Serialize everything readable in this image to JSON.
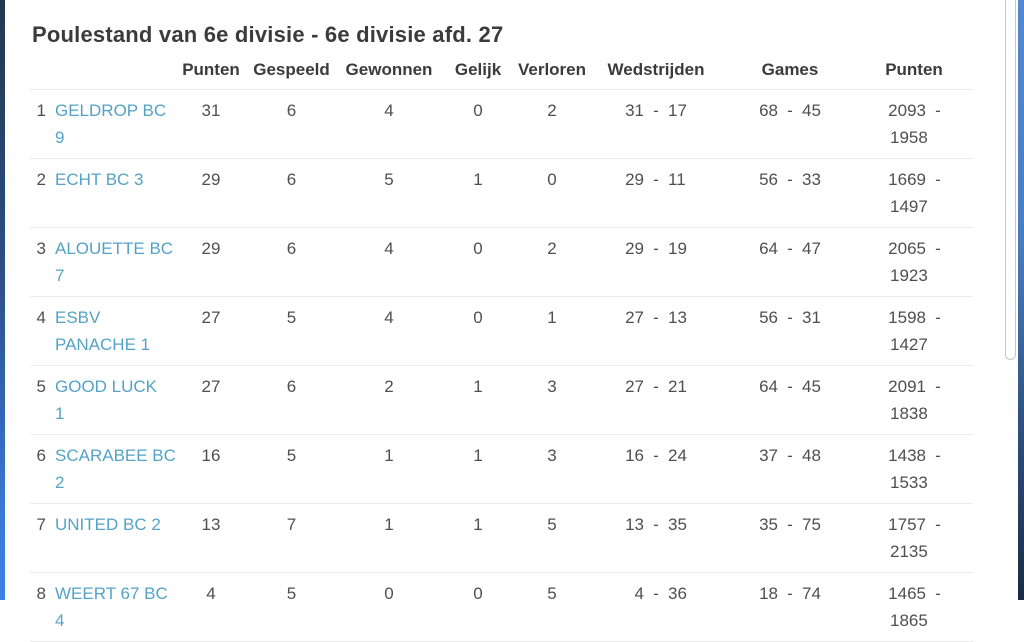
{
  "page": {
    "title": "Poulestand van 6e divisie - 6e divisie afd. 27"
  },
  "colors": {
    "link_accent": "#54a3c7",
    "title_text": "#3b3b3b",
    "body_text": "#4f4f4f",
    "row_separator": "#ececec",
    "edge_left_top": "#243750",
    "edge_left_bottom": "#3f80e4",
    "edge_right_top": "#5389d1",
    "edge_right_bottom": "#1a2c44"
  },
  "table": {
    "headers": [
      "Punten",
      "Gespeeld",
      "Gewonnen",
      "Gelijk",
      "Verloren",
      "Wedstrijden",
      "Games",
      "Punten"
    ],
    "rows": [
      {
        "rank": 1,
        "team": "GELDROP BC 9",
        "team_lines": [
          "GELDROP BC",
          "9"
        ],
        "punten": 31,
        "gespeeld": 6,
        "gewonnen": 4,
        "gelijk": 0,
        "verloren": 2,
        "wedstrijden": [
          31,
          17
        ],
        "games": [
          68,
          45
        ],
        "punten_voor_tegen": [
          2093,
          1958
        ]
      },
      {
        "rank": 2,
        "team": "ECHT BC 3",
        "team_lines": [
          "ECHT BC 3"
        ],
        "punten": 29,
        "gespeeld": 6,
        "gewonnen": 5,
        "gelijk": 1,
        "verloren": 0,
        "wedstrijden": [
          29,
          11
        ],
        "games": [
          56,
          33
        ],
        "punten_voor_tegen": [
          1669,
          1497
        ]
      },
      {
        "rank": 3,
        "team": "ALOUETTE BC 7",
        "team_lines": [
          "ALOUETTE BC",
          "7"
        ],
        "punten": 29,
        "gespeeld": 6,
        "gewonnen": 4,
        "gelijk": 0,
        "verloren": 2,
        "wedstrijden": [
          29,
          19
        ],
        "games": [
          64,
          47
        ],
        "punten_voor_tegen": [
          2065,
          1923
        ]
      },
      {
        "rank": 4,
        "team": "ESBV PANACHE 1",
        "team_lines": [
          "ESBV",
          "PANACHE 1"
        ],
        "punten": 27,
        "gespeeld": 5,
        "gewonnen": 4,
        "gelijk": 0,
        "verloren": 1,
        "wedstrijden": [
          27,
          13
        ],
        "games": [
          56,
          31
        ],
        "punten_voor_tegen": [
          1598,
          1427
        ]
      },
      {
        "rank": 5,
        "team": "GOOD LUCK 1",
        "team_lines": [
          "GOOD LUCK",
          "1"
        ],
        "punten": 27,
        "gespeeld": 6,
        "gewonnen": 2,
        "gelijk": 1,
        "verloren": 3,
        "wedstrijden": [
          27,
          21
        ],
        "games": [
          64,
          45
        ],
        "punten_voor_tegen": [
          2091,
          1838
        ]
      },
      {
        "rank": 6,
        "team": "SCARABEE BC 2",
        "team_lines": [
          "SCARABEE BC",
          "2"
        ],
        "punten": 16,
        "gespeeld": 5,
        "gewonnen": 1,
        "gelijk": 1,
        "verloren": 3,
        "wedstrijden": [
          16,
          24
        ],
        "games": [
          37,
          48
        ],
        "punten_voor_tegen": [
          1438,
          1533
        ]
      },
      {
        "rank": 7,
        "team": "UNITED BC 2",
        "team_lines": [
          "UNITED BC 2"
        ],
        "punten": 13,
        "gespeeld": 7,
        "gewonnen": 1,
        "gelijk": 1,
        "verloren": 5,
        "wedstrijden": [
          13,
          35
        ],
        "games": [
          35,
          75
        ],
        "punten_voor_tegen": [
          1757,
          2135
        ]
      },
      {
        "rank": 8,
        "team": "WEERT 67 BC 4",
        "team_lines": [
          "WEERT 67 BC",
          "4"
        ],
        "punten": 4,
        "gespeeld": 5,
        "gewonnen": 0,
        "gelijk": 0,
        "verloren": 5,
        "wedstrijden": [
          4,
          36
        ],
        "games": [
          18,
          74
        ],
        "punten_voor_tegen": [
          1465,
          1865
        ]
      }
    ]
  }
}
